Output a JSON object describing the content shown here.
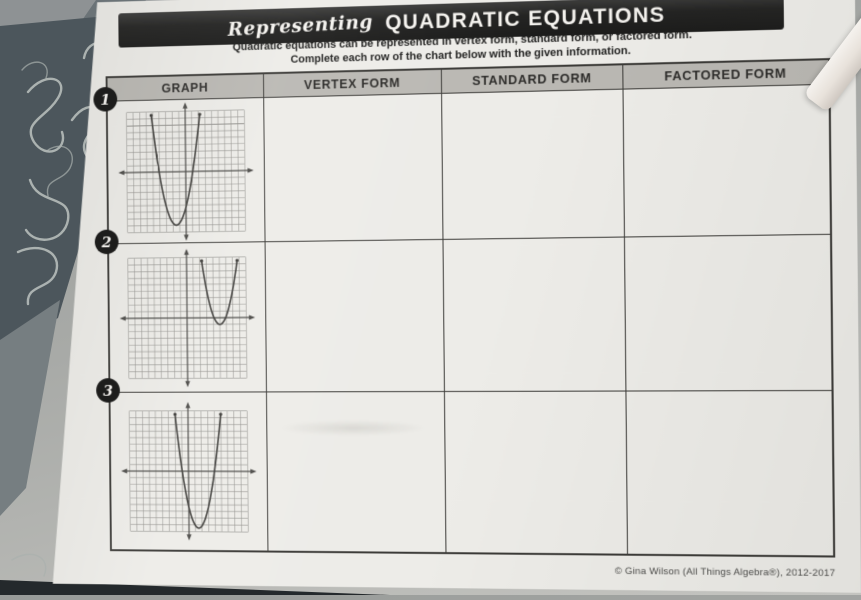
{
  "page": {
    "title_script": "Representing",
    "title_main": "QUADRATIC EQUATIONS",
    "subtitle_line1": "Quadratic equations can be represented in vertex form, standard form, or factored form.",
    "subtitle_line2": "Complete each row of the chart below with the given information.",
    "footer_credit": "© Gina Wilson (All Things Algebra®), 2012-2017"
  },
  "table": {
    "headers": [
      "GRAPH",
      "VERTEX FORM",
      "STANDARD FORM",
      "FACTORED FORM"
    ],
    "rows": [
      {
        "number": "1",
        "vertex_form": "",
        "standard_form": "",
        "factored_form": ""
      },
      {
        "number": "2",
        "vertex_form": "",
        "standard_form": "",
        "factored_form": ""
      },
      {
        "number": "3",
        "vertex_form": "",
        "standard_form": "",
        "factored_form": ""
      }
    ]
  },
  "graphs": [
    {
      "row": 1,
      "shape": "parabola",
      "opens": "up",
      "vertex": [
        -1.5,
        -8
      ],
      "a": 1.2,
      "grid": [
        -9,
        9
      ]
    },
    {
      "row": 2,
      "shape": "parabola",
      "opens": "up",
      "vertex": [
        5,
        -1
      ],
      "a": 1.3,
      "grid": [
        -9,
        9
      ]
    },
    {
      "row": 3,
      "shape": "parabola",
      "opens": "up",
      "vertex": [
        1.5,
        -8.5
      ],
      "a": 1.4,
      "grid": [
        -9,
        9
      ]
    }
  ],
  "colors": {
    "paper": "#edece8",
    "banner": "#232322",
    "banner_text": "#f5f3ef",
    "header_bg": "#bab8b3",
    "table_border": "#3b3a37",
    "grid_line": "#93928e",
    "axis": "#4c4b48",
    "curve": "#403f3c",
    "circle": "#1d1d1c"
  }
}
